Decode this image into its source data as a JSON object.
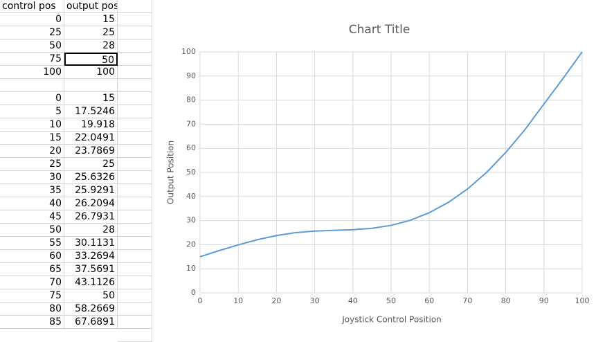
{
  "sheet": {
    "header": [
      "control pos",
      "output pos"
    ],
    "points": [
      [
        0,
        15
      ],
      [
        25,
        25
      ],
      [
        50,
        28
      ],
      [
        75,
        50
      ],
      [
        100,
        100
      ]
    ],
    "curve": [
      [
        0,
        15
      ],
      [
        5,
        17.5246
      ],
      [
        10,
        19.918
      ],
      [
        15,
        22.0491
      ],
      [
        20,
        23.7869
      ],
      [
        25,
        25
      ],
      [
        30,
        25.6326
      ],
      [
        35,
        25.9291
      ],
      [
        40,
        26.2094
      ],
      [
        45,
        26.7931
      ],
      [
        50,
        28
      ],
      [
        55,
        30.1131
      ],
      [
        60,
        33.2694
      ],
      [
        65,
        37.5691
      ],
      [
        70,
        43.1126
      ],
      [
        75,
        50
      ],
      [
        80,
        58.2669
      ],
      [
        85,
        67.6891
      ]
    ]
  },
  "chart_data": {
    "type": "line",
    "title": "Chart Title",
    "x_label": "Joystick Control Position",
    "y_label": "Output Position",
    "x": [
      0,
      5,
      10,
      15,
      20,
      25,
      30,
      35,
      40,
      45,
      50,
      55,
      60,
      65,
      70,
      75,
      80,
      85,
      90,
      95,
      100
    ],
    "series": [
      {
        "color": "#5b9bd5",
        "values": [
          15,
          17.5246,
          19.918,
          22.0491,
          23.7869,
          25,
          25.6326,
          25.9291,
          26.2094,
          26.7931,
          28,
          30.1131,
          33.2694,
          37.5691,
          43.1126,
          50,
          58.2669,
          67.6891,
          78.4,
          89,
          100
        ]
      }
    ],
    "xlim": [
      0,
      100
    ],
    "xticks": [
      0,
      10,
      20,
      30,
      40,
      50,
      60,
      70,
      80,
      90,
      100
    ],
    "ylim": [
      0,
      100
    ],
    "yticks": [
      0,
      10,
      20,
      30,
      40,
      50,
      60,
      70,
      80,
      90,
      100
    ],
    "grid": true
  }
}
